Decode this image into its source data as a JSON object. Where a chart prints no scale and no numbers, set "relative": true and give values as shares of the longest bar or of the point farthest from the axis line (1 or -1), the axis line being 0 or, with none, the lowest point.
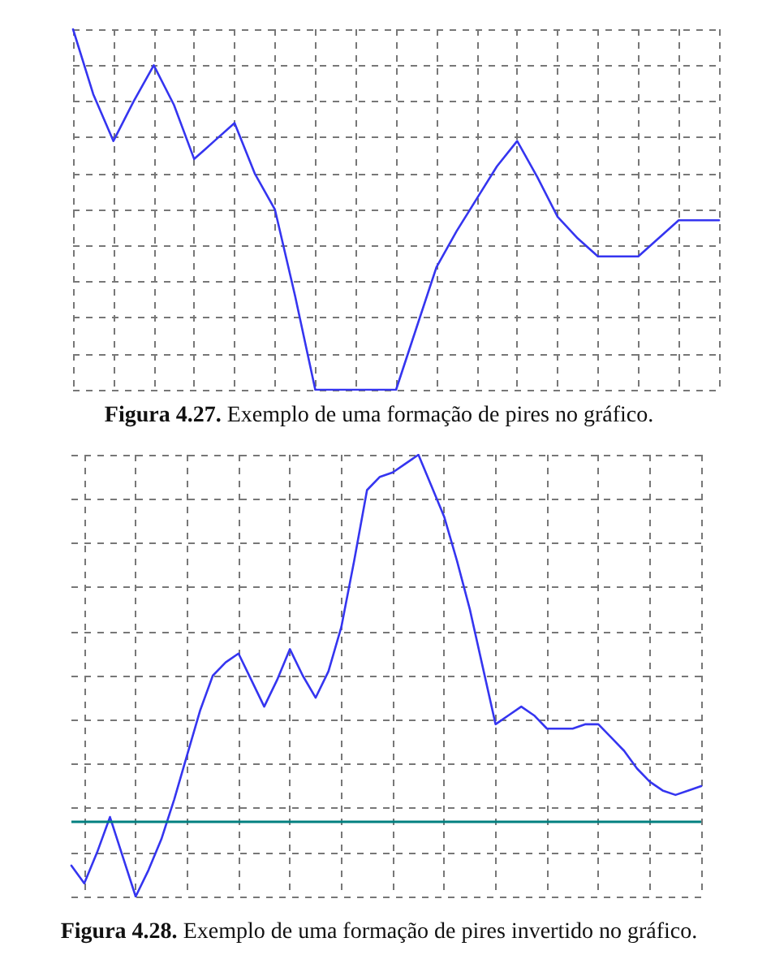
{
  "chart_data": [
    {
      "type": "line",
      "title": "Figura 4.27. Exemplo de uma formação de pires no gráfico.",
      "relative": true,
      "grid": true,
      "marker": "none",
      "line_style": "solid",
      "categories": [
        null,
        null,
        null,
        null,
        null,
        null,
        null,
        null,
        null,
        null,
        null,
        null,
        null,
        null,
        null,
        null,
        null,
        null,
        null,
        null,
        null,
        null,
        null,
        null,
        null,
        null,
        null,
        null,
        null,
        null,
        null,
        null,
        null
      ],
      "series": [
        {
          "color": "#3535f0",
          "values": [
            1.0,
            0.82,
            0.69,
            0.8,
            0.9,
            0.79,
            0.64,
            0.69,
            0.74,
            0.6,
            0.5,
            0.26,
            0,
            0,
            0,
            0,
            0,
            0.17,
            0.34,
            0.44,
            0.53,
            0.62,
            0.69,
            0.59,
            0.48,
            0.42,
            0.37,
            0.37,
            0.37,
            0.42,
            0.47,
            0.47,
            0.47
          ]
        }
      ]
    },
    {
      "type": "line",
      "title": "Figura 4.28. Exemplo de uma formação de pires invertido no gráfico.",
      "relative": true,
      "grid": true,
      "marker": "none",
      "line_style": "solid",
      "categories": [
        null,
        null,
        null,
        null,
        null,
        null,
        null,
        null,
        null,
        null,
        null,
        null,
        null,
        null,
        null,
        null,
        null,
        null,
        null,
        null,
        null,
        null,
        null,
        null,
        null,
        null,
        null,
        null,
        null,
        null,
        null,
        null,
        null,
        null,
        null,
        null,
        null,
        null,
        null,
        null,
        null,
        null,
        null,
        null,
        null,
        null,
        null,
        null,
        null,
        null
      ],
      "series": [
        {
          "color": "#3535f0",
          "values": [
            0.07,
            0.03,
            0.1,
            0.18,
            0.09,
            0,
            0.06,
            0.13,
            0.22,
            0.32,
            0.42,
            0.5,
            0.53,
            0.55,
            0.49,
            0.43,
            0.49,
            0.56,
            0.5,
            0.45,
            0.51,
            0.61,
            0.76,
            0.92,
            0.95,
            0.96,
            0.98,
            1.0,
            0.93,
            0.86,
            0.76,
            0.65,
            0.52,
            0.39,
            0.41,
            0.43,
            0.41,
            0.38,
            0.38,
            0.38,
            0.39,
            0.39,
            0.36,
            0.33,
            0.29,
            0.26,
            0.24,
            0.23,
            0.24,
            0.25
          ]
        }
      ],
      "ref_lines": [
        {
          "axis": "y",
          "value": 0.17,
          "color": "#008080"
        }
      ]
    }
  ]
}
